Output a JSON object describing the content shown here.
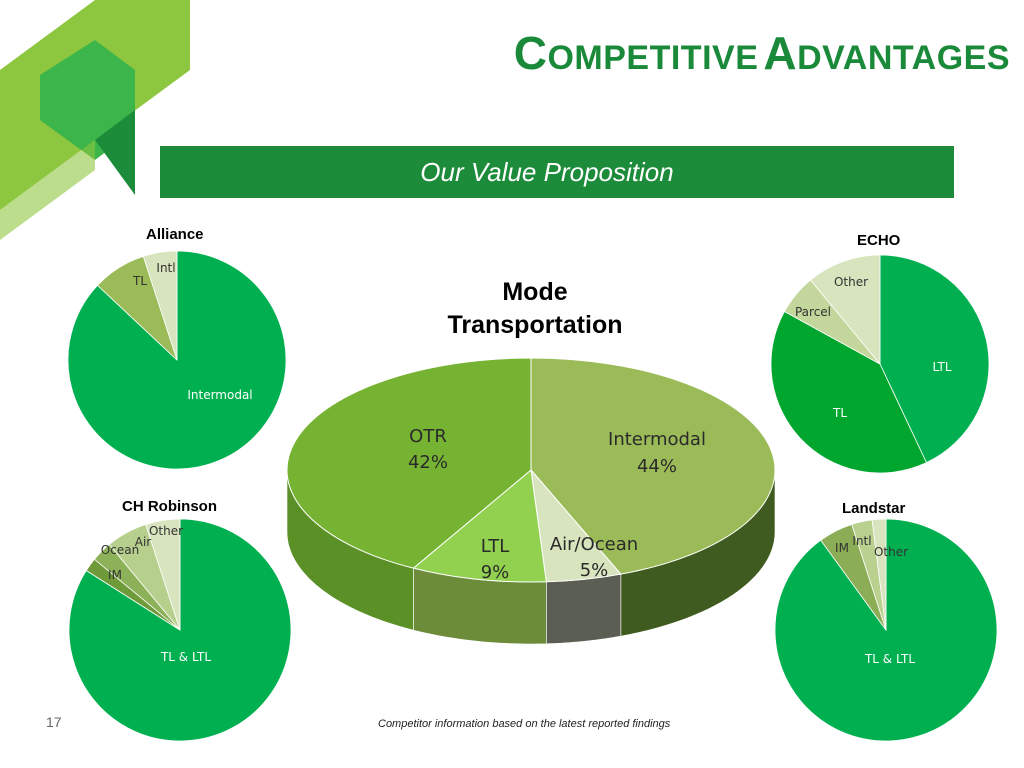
{
  "slide": {
    "title_first_initial": "C",
    "title_first_rest": "OMPETITIVE",
    "title_second_initial": "A",
    "title_second_rest": "DVANTAGES",
    "value_proposition": "Our Value Proposition",
    "center_title_line1": "Mode",
    "center_title_line2": "Transportation",
    "page_number": "17",
    "footnote": "Competitor information based on the latest reported findings"
  },
  "colors": {
    "brand_green": "#1c8c3a",
    "pie_green": "#00b050",
    "light_green": "#9bbb59",
    "pale": "#d7e4bd"
  },
  "chart_data": [
    {
      "type": "pie",
      "title": "Alliance",
      "categories": [
        "Intermodal",
        "TL",
        "Intl"
      ],
      "values": [
        87,
        8,
        5
      ],
      "colors": [
        "#00b050",
        "#9bbb59",
        "#d7e4bd"
      ]
    },
    {
      "type": "pie",
      "title": "ECHO",
      "categories": [
        "LTL",
        "TL",
        "Parcel",
        "Other"
      ],
      "values": [
        43,
        40,
        6,
        11
      ],
      "colors": [
        "#00b050",
        "#00a62e",
        "#c3d69b",
        "#d7e4bd"
      ]
    },
    {
      "type": "pie",
      "title": "Mode Transportation",
      "categories": [
        "Intermodal",
        "Air/Ocean",
        "LTL",
        "OTR"
      ],
      "values": [
        44,
        5,
        9,
        42
      ],
      "labels": [
        "44%",
        "5%",
        "9%",
        "42%"
      ],
      "colors": [
        "#9bbb59",
        "#d7e4bd",
        "#92d050",
        "#77b333"
      ]
    },
    {
      "type": "pie",
      "title": "CH Robinson",
      "categories": [
        "TL & LTL",
        "IM",
        "Ocean",
        "Air",
        "Other"
      ],
      "values": [
        84,
        2,
        3,
        6,
        5
      ],
      "colors": [
        "#00b050",
        "#6e9a3a",
        "#8db158",
        "#b7cf8c",
        "#d7e4bd"
      ]
    },
    {
      "type": "pie",
      "title": "Landstar",
      "categories": [
        "TL & LTL",
        "IM",
        "Intl",
        "Other"
      ],
      "values": [
        90,
        5,
        3,
        2
      ],
      "colors": [
        "#00b050",
        "#8bad55",
        "#b9d08f",
        "#d7e4bd"
      ]
    }
  ]
}
